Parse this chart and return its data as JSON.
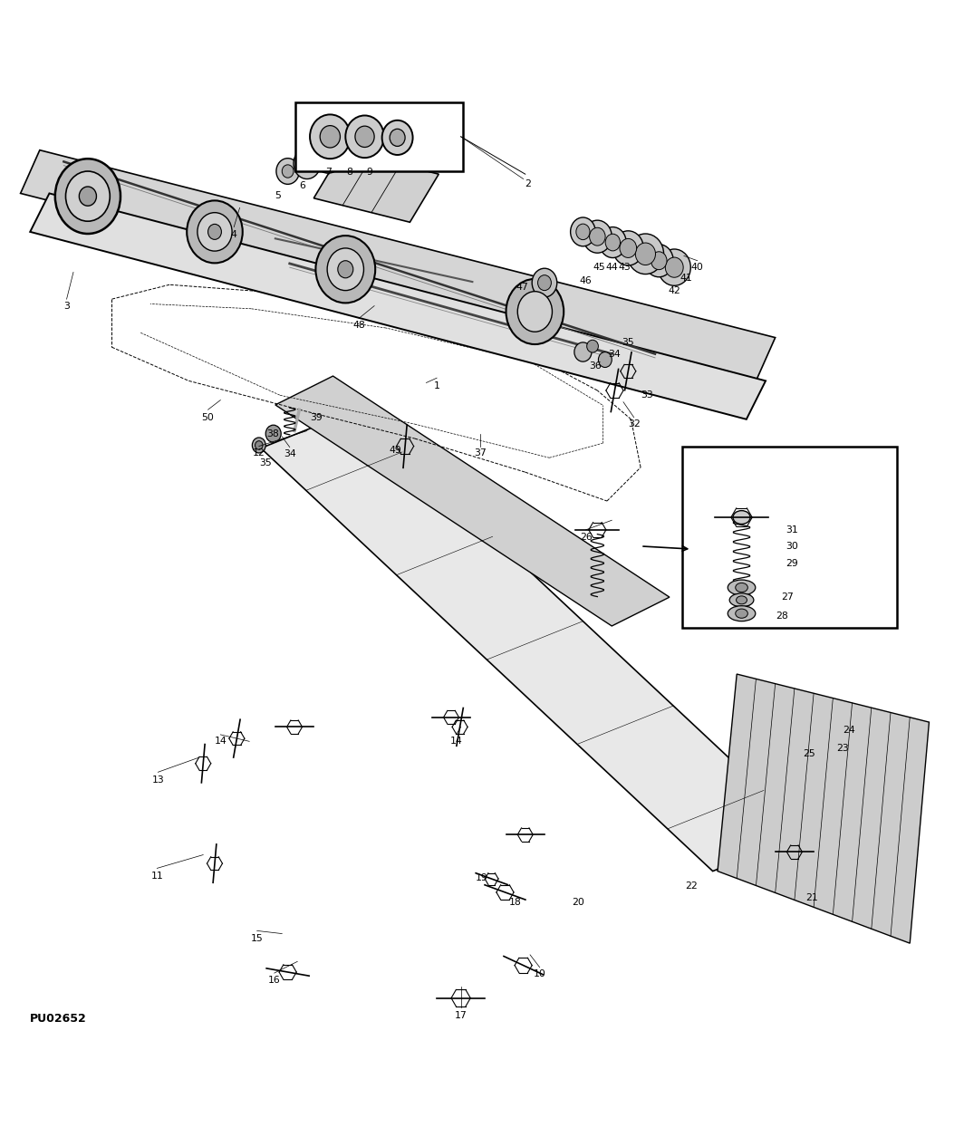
{
  "bg_color": "#ffffff",
  "line_color": "#000000",
  "fig_width": 10.64,
  "fig_height": 12.44,
  "dpi": 100,
  "watermark": "PU02652"
}
